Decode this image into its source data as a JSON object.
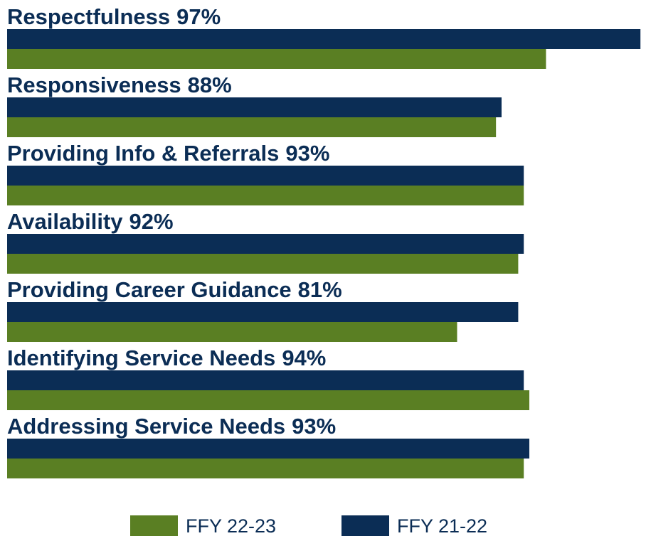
{
  "chart_data": {
    "type": "bar",
    "orientation": "horizontal",
    "categories": [
      "Respectfulness",
      "Responsiveness",
      "Providing Info & Referrals",
      "Availability",
      "Providing Career Guidance",
      "Identifying Service Needs",
      "Addressing Service Needs"
    ],
    "xlim": [
      0,
      115
    ],
    "series": [
      {
        "name": "FFY 22-23",
        "color": "#5a7f23",
        "values": [
          97,
          88,
          93,
          92,
          81,
          94,
          93
        ],
        "value_labels": [
          "97%",
          "88%",
          "93%",
          "92%",
          "81%",
          "94%",
          "93%"
        ]
      },
      {
        "name": "FFY 21-22",
        "color": "#0b2d55",
        "values": [
          114,
          89,
          93,
          93,
          92,
          93,
          94
        ]
      }
    ],
    "legend": "bottom"
  }
}
